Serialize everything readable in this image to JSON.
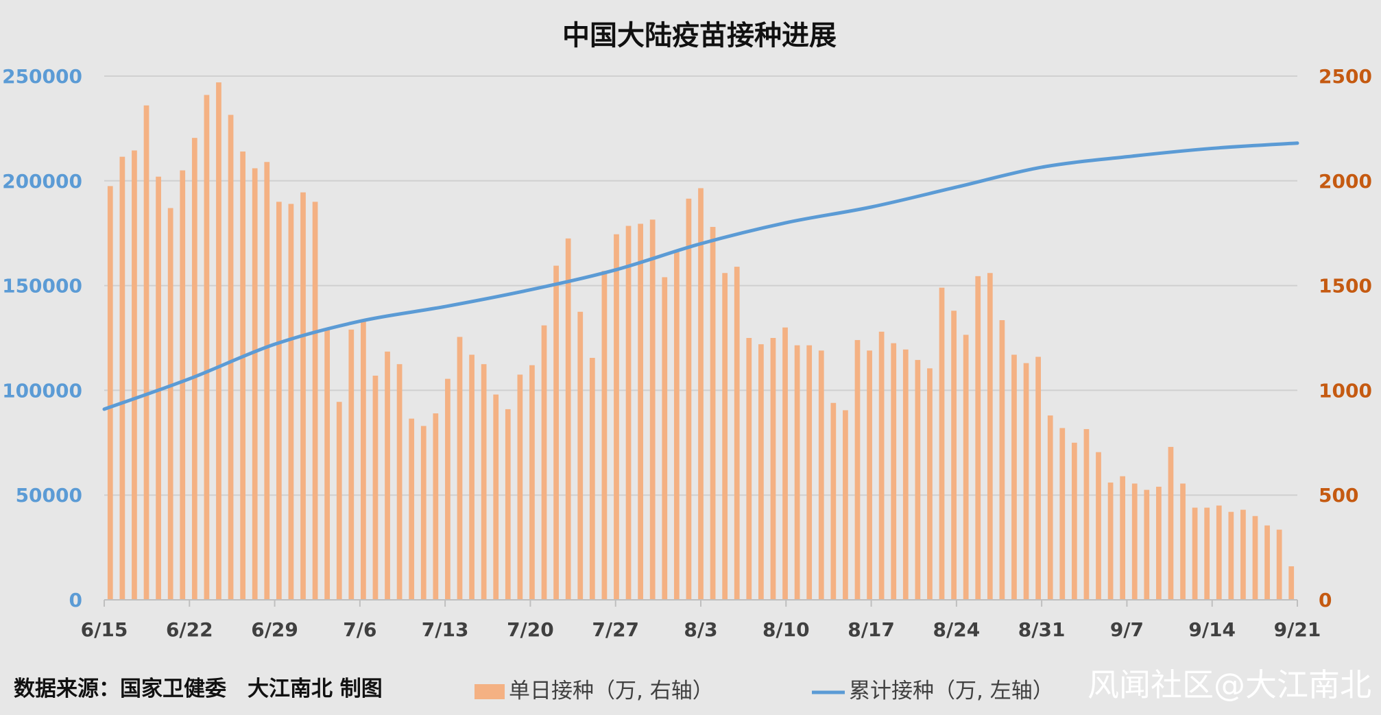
{
  "chart_data": {
    "type": "bar+line",
    "title": "中国大陆疫苗接种进展",
    "x_tick_labels": [
      "6/15",
      "6/22",
      "6/29",
      "7/6",
      "7/13",
      "7/20",
      "7/27",
      "8/3",
      "8/10",
      "8/17",
      "8/24",
      "8/31",
      "9/7",
      "9/14",
      "9/21"
    ],
    "x_start": "6/15",
    "x_end": "9/21",
    "y_left": {
      "range": [
        0,
        250000
      ],
      "ticks": [
        "0",
        "50000",
        "100000",
        "150000",
        "200000",
        "250000"
      ]
    },
    "y_right": {
      "range": [
        0,
        2500
      ],
      "ticks": [
        "0",
        "500",
        "1000",
        "1500",
        "2000",
        "2500"
      ]
    },
    "grid": "horizontal",
    "legend_position": "bottom",
    "series": [
      {
        "name": "单日接种（万, 右轴）",
        "type": "bar",
        "axis": "right",
        "color": "#f4b183",
        "values": [
          1975,
          2115,
          2145,
          2360,
          2020,
          1870,
          2050,
          2205,
          2410,
          2470,
          2315,
          2140,
          2060,
          2090,
          1900,
          1890,
          1945,
          1900,
          1290,
          945,
          1290,
          1330,
          1070,
          1185,
          1125,
          865,
          830,
          890,
          1055,
          1255,
          1170,
          1125,
          980,
          910,
          1075,
          1120,
          1310,
          1595,
          1725,
          1375,
          1155,
          1570,
          1745,
          1785,
          1795,
          1815,
          1540,
          1660,
          1915,
          1965,
          1780,
          1560,
          1590,
          1250,
          1220,
          1250,
          1300,
          1215,
          1215,
          1190,
          940,
          905,
          1240,
          1190,
          1280,
          1225,
          1195,
          1145,
          1105,
          1490,
          1380,
          1265,
          1545,
          1560,
          1335,
          1170,
          1130,
          1160,
          880,
          820,
          750,
          815,
          705,
          560,
          590,
          555,
          525,
          540,
          730,
          555,
          440,
          440,
          450,
          420,
          430,
          400,
          355,
          335,
          160
        ]
      },
      {
        "name": "累计接种（万, 左轴）",
        "type": "line",
        "axis": "left",
        "color": "#5b9bd5",
        "points": [
          [
            "6/15",
            91000
          ],
          [
            "6/22",
            105500
          ],
          [
            "6/29",
            122000
          ],
          [
            "7/6",
            133000
          ],
          [
            "7/13",
            140000
          ],
          [
            "7/20",
            148000
          ],
          [
            "7/27",
            157500
          ],
          [
            "8/3",
            170000
          ],
          [
            "8/10",
            180000
          ],
          [
            "8/17",
            187500
          ],
          [
            "8/24",
            197000
          ],
          [
            "8/31",
            206500
          ],
          [
            "9/7",
            211500
          ],
          [
            "9/14",
            215500
          ],
          [
            "9/21",
            218000
          ]
        ]
      }
    ],
    "annotations": {
      "source": "数据来源：国家卫健委　大江南北 制图",
      "watermark": "风闻社区@大江南北"
    }
  }
}
